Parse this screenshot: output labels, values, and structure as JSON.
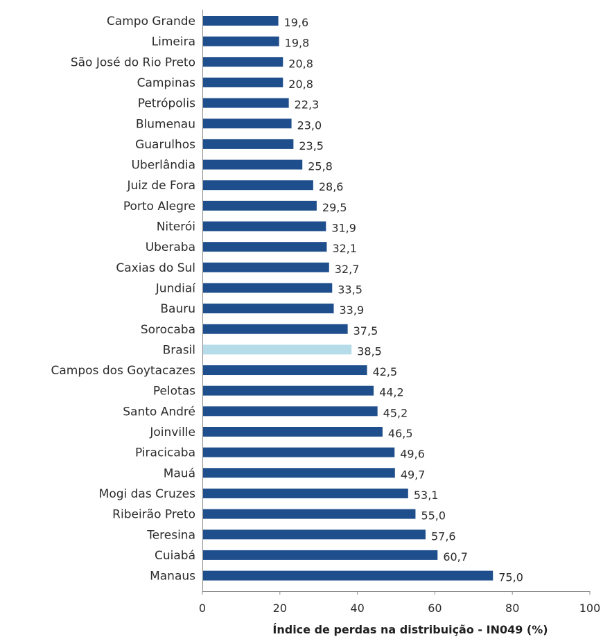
{
  "chart_data": {
    "type": "bar",
    "orientation": "horizontal",
    "title": "",
    "xlabel": "Índice de perdas na distribuição - IN049 (%)",
    "ylabel": "",
    "xlim": [
      0,
      100
    ],
    "xticks": [
      "0",
      "20",
      "40",
      "60",
      "80",
      "100"
    ],
    "grid": false,
    "colors": {
      "bar": "#1f4e8c",
      "highlight": "#b6dcea"
    },
    "highlight_category": "Brasil",
    "categories": [
      "Campo Grande",
      "Limeira",
      "São José do Rio Preto",
      "Campinas",
      "Petrópolis",
      "Blumenau",
      "Guarulhos",
      "Uberlândia",
      "Juiz de Fora",
      "Porto Alegre",
      "Niterói",
      "Uberaba",
      "Caxias do Sul",
      "Jundiaí",
      "Bauru",
      "Sorocaba",
      "Brasil",
      "Campos dos Goytacazes",
      "Pelotas",
      "Santo André",
      "Joinville",
      "Piracicaba",
      "Mauá",
      "Mogi das Cruzes",
      "Ribeirão Preto",
      "Teresina",
      "Cuiabá",
      "Manaus"
    ],
    "values": [
      19.6,
      19.8,
      20.8,
      20.8,
      22.3,
      23.0,
      23.5,
      25.8,
      28.6,
      29.5,
      31.9,
      32.1,
      32.7,
      33.5,
      33.9,
      37.5,
      38.5,
      42.5,
      44.2,
      45.2,
      46.5,
      49.6,
      49.7,
      53.1,
      55.0,
      57.6,
      60.7,
      75.0
    ],
    "value_labels": [
      "19,6",
      "19,8",
      "20,8",
      "20,8",
      "22,3",
      "23,0",
      "23,5",
      "25,8",
      "28,6",
      "29,5",
      "31,9",
      "32,1",
      "32,7",
      "33,5",
      "33,9",
      "37,5",
      "38,5",
      "42,5",
      "44,2",
      "45,2",
      "46,5",
      "49,6",
      "49,7",
      "53,1",
      "55,0",
      "57,6",
      "60,7",
      "75,0"
    ]
  }
}
